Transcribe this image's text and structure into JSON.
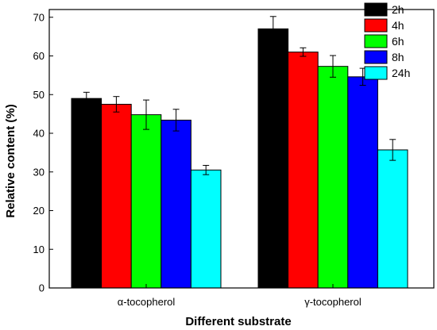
{
  "chart_data": {
    "type": "bar",
    "xlabel": "Different substrate",
    "ylabel": "Relative content (%)",
    "ylim": [
      0,
      72
    ],
    "yticks": [
      0,
      10,
      20,
      30,
      40,
      50,
      60,
      70
    ],
    "categories": [
      "α-tocopherol",
      "γ-tocopherol"
    ],
    "series": [
      {
        "name": "2h",
        "color": "#000000",
        "values": [
          49.0,
          67.0
        ],
        "errors": [
          1.6,
          3.2
        ]
      },
      {
        "name": "4h",
        "color": "#ff0000",
        "values": [
          47.5,
          61.0
        ],
        "errors": [
          2.0,
          1.1
        ]
      },
      {
        "name": "6h",
        "color": "#00ff00",
        "values": [
          44.8,
          57.3
        ],
        "errors": [
          3.8,
          2.8
        ]
      },
      {
        "name": "8h",
        "color": "#0000ff",
        "values": [
          43.4,
          54.6
        ],
        "errors": [
          2.8,
          2.2
        ]
      },
      {
        "name": "24h",
        "color": "#00ffff",
        "values": [
          30.5,
          35.7
        ],
        "errors": [
          1.2,
          2.7
        ]
      }
    ],
    "legend_position": "top-right",
    "grid": false,
    "error_bars": true
  }
}
